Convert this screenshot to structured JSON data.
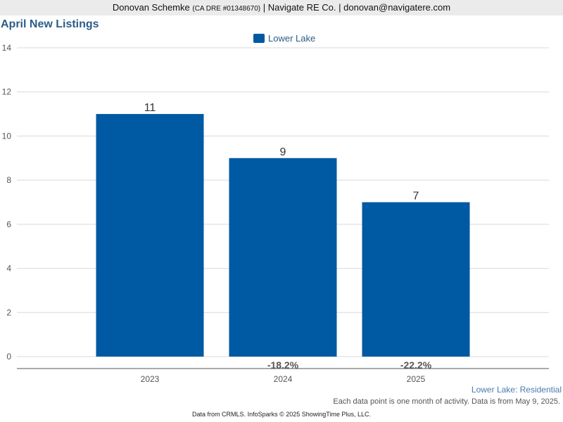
{
  "header": {
    "name": "Donovan Schemke",
    "license": "(CA DRE #01348670)",
    "rest": "| Navigate RE Co. | donovan@navigatere.com"
  },
  "colors": {
    "bar": "#0059a3",
    "title": "#2c5c8a",
    "grid": "#d9d9d9"
  },
  "chart_data": {
    "type": "bar",
    "title": "April New Listings",
    "categories": [
      "2023",
      "2024",
      "2025"
    ],
    "series": [
      {
        "name": "Lower Lake",
        "values": [
          11,
          9,
          7
        ]
      }
    ],
    "data_labels": [
      "11",
      "9",
      "7"
    ],
    "change_labels": [
      "",
      "-18.2%",
      "-22.2%"
    ],
    "ylim": [
      0,
      14
    ],
    "yticks": [
      0,
      2,
      4,
      6,
      8,
      10,
      12,
      14
    ],
    "grid": true,
    "legend": "top-center"
  },
  "footer": {
    "region": "Lower Lake: Residential",
    "note": "Each data point is one month of activity. Data is from May 9, 2025.",
    "credit": "Data from CRMLS. InfoSparks © 2025 ShowingTime Plus, LLC."
  }
}
